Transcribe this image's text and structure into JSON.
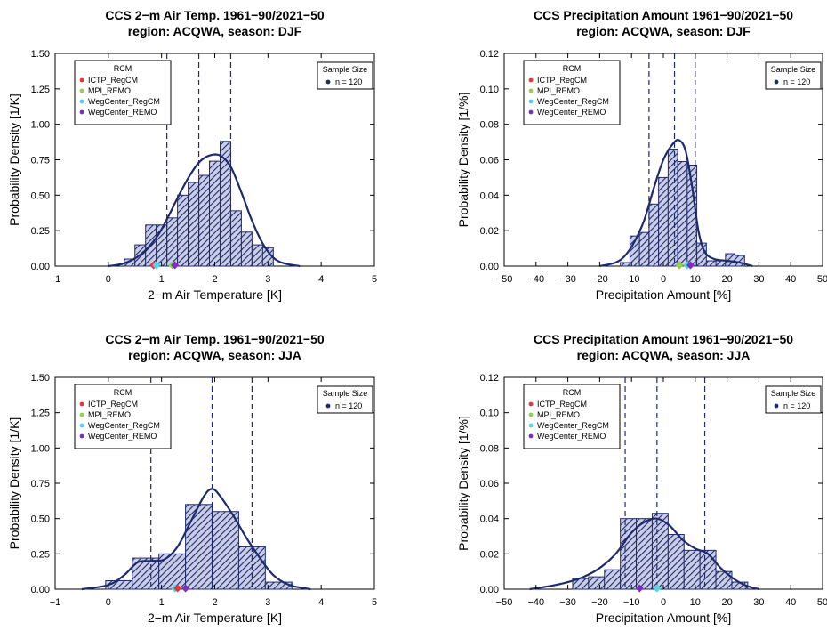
{
  "chart_data": [
    {
      "type": "bar",
      "title": "CCS 2−m Air Temp. 1961−90/2021−50",
      "subtitle": "region: ACQWA, season: DJF",
      "xlabel": "2−m Air Temperature [K]",
      "ylabel": "Probability Density [1/K]",
      "xlim": [
        -1,
        5
      ],
      "ylim": [
        0,
        1.5
      ],
      "xticks": [
        "−1",
        "0",
        "1",
        "2",
        "3",
        "4",
        "5"
      ],
      "yticks": [
        "0.00",
        "0.25",
        "0.50",
        "0.75",
        "1.00",
        "1.25",
        "1.50"
      ],
      "bins": [
        {
          "x0": 0.3,
          "x1": 0.5,
          "density": 0.05
        },
        {
          "x0": 0.5,
          "x1": 0.7,
          "density": 0.15
        },
        {
          "x0": 0.7,
          "x1": 0.9,
          "density": 0.29
        },
        {
          "x0": 0.9,
          "x1": 1.1,
          "density": 0.29
        },
        {
          "x0": 1.1,
          "x1": 1.3,
          "density": 0.34
        },
        {
          "x0": 1.3,
          "x1": 1.5,
          "density": 0.5
        },
        {
          "x0": 1.5,
          "x1": 1.7,
          "density": 0.59
        },
        {
          "x0": 1.7,
          "x1": 1.9,
          "density": 0.64
        },
        {
          "x0": 1.9,
          "x1": 2.1,
          "density": 0.74
        },
        {
          "x0": 2.1,
          "x1": 2.3,
          "density": 0.88
        },
        {
          "x0": 2.3,
          "x1": 2.5,
          "density": 0.39
        },
        {
          "x0": 2.5,
          "x1": 2.7,
          "density": 0.24
        },
        {
          "x0": 2.7,
          "x1": 2.9,
          "density": 0.15
        },
        {
          "x0": 2.9,
          "x1": 3.1,
          "density": 0.13
        }
      ],
      "kde": {
        "x": [
          0.0,
          0.3,
          0.6,
          0.9,
          1.1,
          1.3,
          1.5,
          1.7,
          1.9,
          2.1,
          2.3,
          2.5,
          2.7,
          2.9,
          3.1,
          3.3,
          3.6
        ],
        "y": [
          0.0,
          0.02,
          0.08,
          0.2,
          0.33,
          0.48,
          0.62,
          0.73,
          0.78,
          0.78,
          0.7,
          0.52,
          0.32,
          0.16,
          0.06,
          0.02,
          0.0
        ]
      },
      "vlines": [
        1.1,
        1.7,
        2.3
      ],
      "markers": [
        {
          "name": "ICTP_RegCM",
          "x": 0.85
        },
        {
          "name": "WegCenter_RegCM",
          "x": 0.9
        },
        {
          "name": "MPI_REMO",
          "x": 1.2
        },
        {
          "name": "WegCenter_REMO",
          "x": 1.25
        }
      ],
      "legend": {
        "title": "RCM",
        "entries": [
          "ICTP_RegCM",
          "MPI_REMO",
          "WegCenter_RegCM",
          "WegCenter_REMO"
        ],
        "placement": "top-left"
      },
      "sample_legend": {
        "title": "Sample Size",
        "entry": "n = 120",
        "placement": "top-right"
      }
    },
    {
      "type": "bar",
      "title": "CCS Precipitation Amount 1961−90/2021−50",
      "subtitle": "region: ACQWA, season: DJF",
      "xlabel": "Precipitation Amount [%]",
      "ylabel": "Probability Density [1/%]",
      "xlim": [
        -50,
        50
      ],
      "ylim": [
        0,
        0.12
      ],
      "xticks": [
        "−50",
        "−40",
        "−30",
        "−20",
        "−10",
        "0",
        "10",
        "20",
        "30",
        "40",
        "50"
      ],
      "yticks": [
        "0.00",
        "0.02",
        "0.04",
        "0.06",
        "0.08",
        "0.10",
        "0.12"
      ],
      "bins": [
        {
          "x0": -13.5,
          "x1": -10.5,
          "density": 0.002
        },
        {
          "x0": -10.5,
          "x1": -7.5,
          "density": 0.017
        },
        {
          "x0": -7.5,
          "x1": -4.5,
          "density": 0.019
        },
        {
          "x0": -4.5,
          "x1": -1.5,
          "density": 0.035
        },
        {
          "x0": -1.5,
          "x1": 1.5,
          "density": 0.05
        },
        {
          "x0": 1.5,
          "x1": 4.5,
          "density": 0.066
        },
        {
          "x0": 4.5,
          "x1": 7.5,
          "density": 0.059
        },
        {
          "x0": 7.5,
          "x1": 10.5,
          "density": 0.057
        },
        {
          "x0": 10.5,
          "x1": 13.5,
          "density": 0.013
        },
        {
          "x0": 13.5,
          "x1": 16.5,
          "density": 0.003
        },
        {
          "x0": 16.5,
          "x1": 19.5,
          "density": 0.003
        },
        {
          "x0": 19.5,
          "x1": 22.5,
          "density": 0.007
        },
        {
          "x0": 22.5,
          "x1": 25.5,
          "density": 0.006
        }
      ],
      "kde": {
        "x": [
          -20,
          -15,
          -12,
          -9,
          -6,
          -3,
          0,
          3,
          5,
          7,
          9,
          11,
          13,
          16,
          20,
          24,
          28
        ],
        "y": [
          0.0,
          0.002,
          0.006,
          0.014,
          0.026,
          0.044,
          0.06,
          0.069,
          0.071,
          0.065,
          0.045,
          0.02,
          0.008,
          0.004,
          0.003,
          0.002,
          0.0
        ]
      },
      "vlines": [
        -4.5,
        3.5,
        10
      ],
      "markers": [
        {
          "name": "ICTP_RegCM",
          "x": 5
        },
        {
          "name": "MPI_REMO",
          "x": 5
        },
        {
          "name": "WegCenter_RegCM",
          "x": 7.5
        },
        {
          "name": "WegCenter_REMO",
          "x": 8.5
        }
      ],
      "legend": {
        "title": "RCM",
        "entries": [
          "ICTP_RegCM",
          "MPI_REMO",
          "WegCenter_RegCM",
          "WegCenter_REMO"
        ],
        "placement": "top-left"
      },
      "sample_legend": {
        "title": "Sample Size",
        "entry": "n = 120",
        "placement": "top-right"
      }
    },
    {
      "type": "bar",
      "title": "CCS 2−m Air Temp. 1961−90/2021−50",
      "subtitle": "region: ACQWA, season: JJA",
      "xlabel": "2−m Air Temperature [K]",
      "ylabel": "Probability Density [1/K]",
      "xlim": [
        -1,
        5
      ],
      "ylim": [
        0,
        1.5
      ],
      "xticks": [
        "−1",
        "0",
        "1",
        "2",
        "3",
        "4",
        "5"
      ],
      "yticks": [
        "0.00",
        "0.25",
        "0.50",
        "0.75",
        "1.00",
        "1.25",
        "1.50"
      ],
      "bins": [
        {
          "x0": -0.05,
          "x1": 0.45,
          "density": 0.06
        },
        {
          "x0": 0.45,
          "x1": 0.95,
          "density": 0.22
        },
        {
          "x0": 0.95,
          "x1": 1.45,
          "density": 0.25
        },
        {
          "x0": 1.45,
          "x1": 1.95,
          "density": 0.6
        },
        {
          "x0": 1.95,
          "x1": 2.45,
          "density": 0.55
        },
        {
          "x0": 2.45,
          "x1": 2.95,
          "density": 0.3
        },
        {
          "x0": 2.95,
          "x1": 3.45,
          "density": 0.05
        }
      ],
      "kde": {
        "x": [
          -0.5,
          0.0,
          0.3,
          0.55,
          0.8,
          1.05,
          1.3,
          1.55,
          1.8,
          1.95,
          2.1,
          2.35,
          2.6,
          2.85,
          3.1,
          3.4,
          3.8
        ],
        "y": [
          0.0,
          0.03,
          0.1,
          0.19,
          0.2,
          0.21,
          0.3,
          0.48,
          0.66,
          0.71,
          0.66,
          0.52,
          0.36,
          0.22,
          0.1,
          0.03,
          0.0
        ]
      },
      "vlines": [
        0.8,
        1.95,
        2.7
      ],
      "markers": [
        {
          "name": "WegCenter_RegCM",
          "x": 1.25
        },
        {
          "name": "ICTP_RegCM",
          "x": 1.3
        },
        {
          "name": "MPI_REMO",
          "x": 1.45
        },
        {
          "name": "WegCenter_REMO",
          "x": 1.45
        }
      ],
      "legend": {
        "title": "RCM",
        "entries": [
          "ICTP_RegCM",
          "MPI_REMO",
          "WegCenter_RegCM",
          "WegCenter_REMO"
        ],
        "placement": "top-left"
      },
      "sample_legend": {
        "title": "Sample Size",
        "entry": "n = 120",
        "placement": "top-right"
      }
    },
    {
      "type": "bar",
      "title": "CCS Precipitation Amount 1961−90/2021−50",
      "subtitle": "region: ACQWA, season: JJA",
      "xlabel": "Precipitation Amount [%]",
      "ylabel": "Probability Density [1/%]",
      "xlim": [
        -50,
        50
      ],
      "ylim": [
        0,
        0.12
      ],
      "xticks": [
        "−50",
        "−40",
        "−30",
        "−20",
        "−10",
        "0",
        "10",
        "20",
        "30",
        "40",
        "50"
      ],
      "yticks": [
        "0.00",
        "0.02",
        "0.04",
        "0.06",
        "0.08",
        "0.10",
        "0.12"
      ],
      "bins": [
        {
          "x0": -28.5,
          "x1": -23.5,
          "density": 0.006
        },
        {
          "x0": -23.5,
          "x1": -18.5,
          "density": 0.007
        },
        {
          "x0": -18.5,
          "x1": -13.5,
          "density": 0.011
        },
        {
          "x0": -13.5,
          "x1": -8.5,
          "density": 0.04
        },
        {
          "x0": -8.5,
          "x1": -3.5,
          "density": 0.04
        },
        {
          "x0": -3.5,
          "x1": 1.5,
          "density": 0.043
        },
        {
          "x0": 1.5,
          "x1": 6.5,
          "density": 0.031
        },
        {
          "x0": 6.5,
          "x1": 11.5,
          "density": 0.022
        },
        {
          "x0": 11.5,
          "x1": 16.5,
          "density": 0.022
        },
        {
          "x0": 16.5,
          "x1": 21.5,
          "density": 0.01
        },
        {
          "x0": 21.5,
          "x1": 26.5,
          "density": 0.004
        }
      ],
      "kde": {
        "x": [
          -42,
          -35,
          -30,
          -25,
          -20,
          -15,
          -10,
          -6,
          -2,
          2,
          6,
          10,
          14,
          18,
          22,
          26,
          30
        ],
        "y": [
          0.0,
          0.002,
          0.004,
          0.007,
          0.012,
          0.02,
          0.032,
          0.038,
          0.04,
          0.036,
          0.028,
          0.023,
          0.02,
          0.012,
          0.006,
          0.002,
          0.0
        ]
      },
      "vlines": [
        -12,
        -2,
        13
      ],
      "markers": [
        {
          "name": "ICTP_RegCM",
          "x": -7.5
        },
        {
          "name": "WegCenter_REMO",
          "x": -7.5
        },
        {
          "name": "MPI_REMO",
          "x": -2
        },
        {
          "name": "WegCenter_RegCM",
          "x": -2
        }
      ],
      "legend": {
        "title": "RCM",
        "entries": [
          "ICTP_RegCM",
          "MPI_REMO",
          "WegCenter_RegCM",
          "WegCenter_REMO"
        ],
        "placement": "top-left"
      },
      "sample_legend": {
        "title": "Sample Size",
        "entry": "n = 120",
        "placement": "top-right"
      }
    }
  ],
  "colors": {
    "navy": "#1f2a6e",
    "hatch_fill": "#c9cde6",
    "ICTP_RegCM": "#e8333b",
    "MPI_REMO": "#8fd14f",
    "WegCenter_RegCM": "#4fd6e6",
    "WegCenter_REMO": "#7a2fbf"
  }
}
